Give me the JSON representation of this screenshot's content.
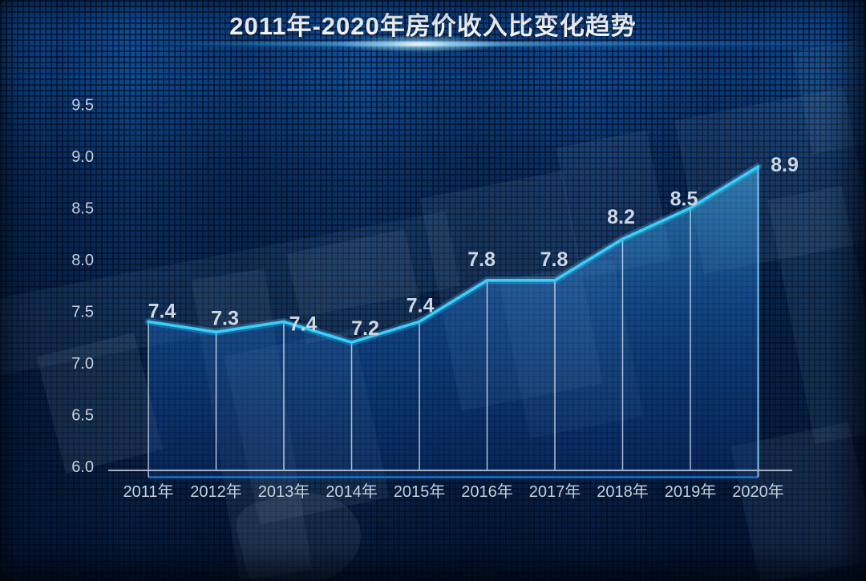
{
  "chart_data": {
    "type": "area",
    "title": "2011年-2020年房价收入比变化趋势",
    "categories": [
      "2011年",
      "2012年",
      "2013年",
      "2014年",
      "2015年",
      "2016年",
      "2017年",
      "2018年",
      "2019年",
      "2020年"
    ],
    "values": [
      7.4,
      7.3,
      7.4,
      7.2,
      7.4,
      7.8,
      7.8,
      8.2,
      8.5,
      8.9
    ],
    "value_labels": [
      "7.4",
      "7.3",
      "7.4",
      "7.2",
      "7.4",
      "7.8",
      "7.8",
      "8.2",
      "8.5",
      "8.9"
    ],
    "xlabel": "",
    "ylabel": "",
    "ylim": [
      6.0,
      9.5
    ],
    "yticks": [
      6.0,
      6.5,
      7.0,
      7.5,
      8.0,
      8.5,
      9.0,
      9.5
    ],
    "ytick_labels": [
      "6.0",
      "6.5",
      "7.0",
      "7.5",
      "8.0",
      "8.5",
      "9.0",
      "9.5"
    ],
    "grid": false,
    "legend": "none",
    "colors": {
      "line": "#31d2ff",
      "line_glow": "rgba(70,200,255,0.28)",
      "area_top": "rgba(82,196,255,0.50)",
      "area_mid": "rgba(35,125,225,0.38)",
      "area_bottom": "rgba(10,60,150,0.30)",
      "area_border": "#1e7bd8",
      "drop_line": "rgba(214,230,245,0.8)",
      "right_edge": "rgba(140,215,255,0.9)",
      "axis": "#b3c2d4",
      "tick_text": "#c4d0dd",
      "value_text": "#cdd7e2",
      "title_text": "#ffffff",
      "background": "#0a4488"
    }
  }
}
